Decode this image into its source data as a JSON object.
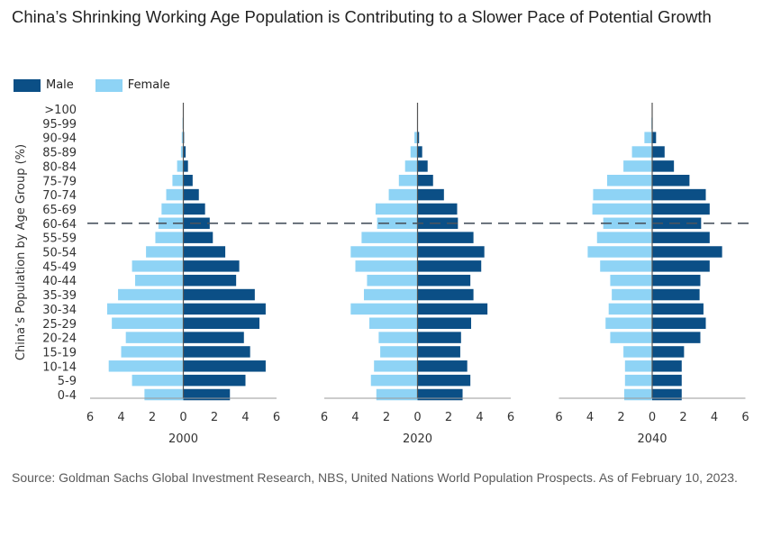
{
  "title": "China’s Shrinking Working Age Population is Contributing to a Slower Pace of Potential Growth",
  "source": "Source: Goldman Sachs Global Investment Research, NBS, United Nations World Population Prospects. As of February 10, 2023.",
  "colors": {
    "male": "#0b4f86",
    "female": "#8ed3f5",
    "axis": "#999999",
    "center": "#555555",
    "dashed": "#4a5560"
  },
  "chart_data": {
    "type": "bar",
    "subtype": "population-pyramid",
    "title": "China’s Shrinking Working Age Population is Contributing to a Slower Pace of Potential Growth",
    "ylabel": "China’s Population by Age Group (%)",
    "legend": {
      "position": "top-left",
      "entries": [
        "Male",
        "Female"
      ]
    },
    "categories": [
      ">100",
      "95-99",
      "90-94",
      "85-89",
      "80-84",
      "75-79",
      "70-74",
      "65-69",
      "60-64",
      "55-59",
      "50-54",
      "45-49",
      "40-44",
      "35-39",
      "30-34",
      "25-29",
      "20-24",
      "15-19",
      "10-14",
      "5-9",
      "0-4"
    ],
    "xlim": [
      -6,
      6
    ],
    "xticks": [
      "6",
      "4",
      "2",
      "0",
      "2",
      "4",
      "6"
    ],
    "reference_line": {
      "category": "60-64",
      "style": "dashed"
    },
    "grid": false,
    "panels": [
      {
        "xlabel": "2000",
        "male": [
          0.01,
          0.02,
          0.05,
          0.15,
          0.3,
          0.6,
          1.0,
          1.4,
          1.7,
          1.9,
          2.7,
          3.6,
          3.4,
          4.6,
          5.3,
          4.9,
          3.9,
          4.3,
          5.3,
          4.0,
          3.0
        ],
        "female": [
          0.02,
          0.05,
          0.1,
          0.15,
          0.4,
          0.7,
          1.1,
          1.4,
          1.6,
          1.8,
          2.4,
          3.3,
          3.1,
          4.2,
          4.9,
          4.6,
          3.7,
          4.0,
          4.8,
          3.3,
          2.5
        ]
      },
      {
        "xlabel": "2020",
        "male": [
          0.01,
          0.02,
          0.1,
          0.3,
          0.65,
          1.0,
          1.7,
          2.55,
          2.6,
          3.6,
          4.3,
          4.1,
          3.4,
          3.6,
          4.5,
          3.45,
          2.8,
          2.75,
          3.2,
          3.4,
          2.9
        ],
        "female": [
          0.01,
          0.03,
          0.2,
          0.45,
          0.8,
          1.2,
          1.85,
          2.7,
          2.6,
          3.6,
          4.3,
          4.0,
          3.25,
          3.45,
          4.3,
          3.1,
          2.5,
          2.4,
          2.8,
          3.0,
          2.65
        ]
      },
      {
        "xlabel": "2040",
        "male": [
          0.02,
          0.03,
          0.25,
          0.8,
          1.4,
          2.4,
          3.45,
          3.7,
          3.15,
          3.7,
          4.5,
          3.7,
          3.1,
          3.05,
          3.3,
          3.45,
          3.1,
          2.05,
          1.9,
          1.9,
          1.9
        ],
        "female": [
          0.02,
          0.05,
          0.5,
          1.3,
          1.85,
          2.9,
          3.8,
          3.85,
          3.15,
          3.55,
          4.15,
          3.35,
          2.7,
          2.6,
          2.8,
          3.0,
          2.7,
          1.85,
          1.75,
          1.75,
          1.8
        ]
      }
    ]
  }
}
